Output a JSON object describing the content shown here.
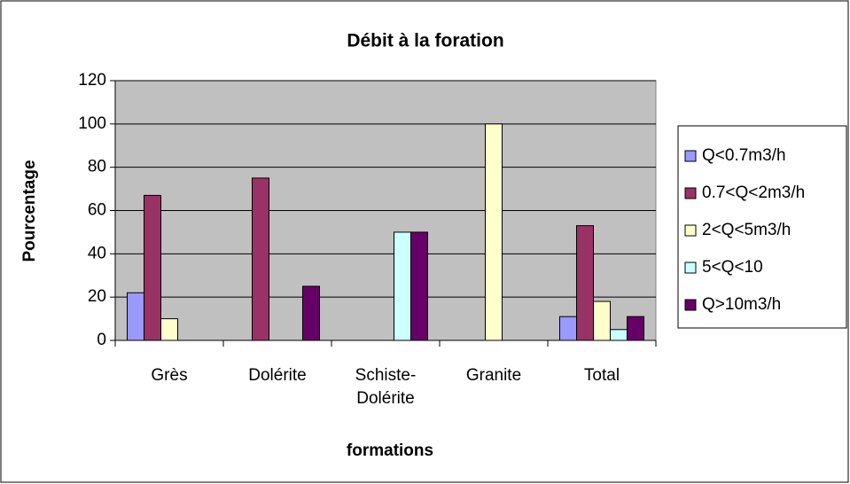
{
  "chart_data": {
    "type": "bar",
    "title": "Débit à la foration",
    "x_label": "formations",
    "y_label": "Pourcentage",
    "categories": [
      "Grès",
      "Dolérite",
      "Schiste-Dolérite",
      "Granite",
      "Total"
    ],
    "series": [
      {
        "name": "Q<0.7m3/h",
        "color": "#9999ff",
        "values": [
          22,
          0,
          0,
          0,
          11
        ]
      },
      {
        "name": "0.7<Q<2m3/h",
        "color": "#993366",
        "values": [
          67,
          75,
          0,
          0,
          53
        ]
      },
      {
        "name": "2<Q<5m3/h",
        "color": "#ffffcc",
        "values": [
          10,
          0,
          0,
          100,
          18
        ]
      },
      {
        "name": "5<Q<10",
        "color": "#ccffff",
        "values": [
          0,
          0,
          50,
          0,
          5
        ]
      },
      {
        "name": "Q>10m3/h",
        "color": "#660066",
        "values": [
          0,
          25,
          50,
          0,
          11
        ]
      }
    ],
    "ylim": [
      0,
      120
    ],
    "yticks": [
      0,
      20,
      40,
      60,
      80,
      100,
      120
    ],
    "grid": true,
    "plot_background": "#c0c0c0",
    "legend": "right"
  }
}
